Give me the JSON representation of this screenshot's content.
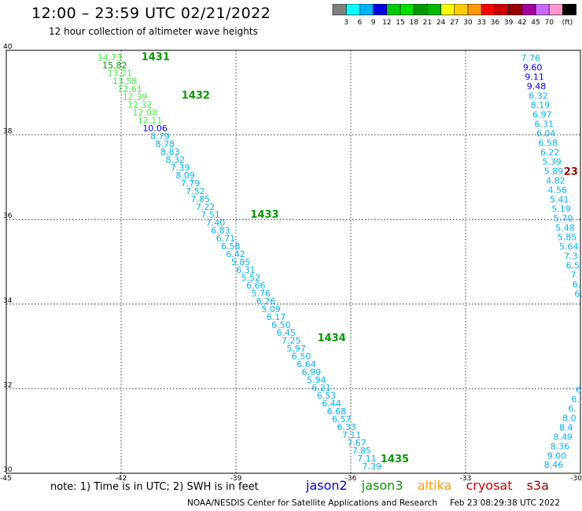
{
  "header": {
    "title": "12:00 – 23:59 UTC 02/21/2022",
    "subtitle": "12 hour collection of altimeter wave heights"
  },
  "colorbar": {
    "colors": [
      "#808080",
      "#00ffff",
      "#00b2ff",
      "#0000e0",
      "#00cd00",
      "#00e000",
      "#009900",
      "#00b800",
      "#ffff00",
      "#ffcc00",
      "#ff9900",
      "#ff0000",
      "#cc0000",
      "#990000",
      "#a000a0",
      "#cc66ff",
      "#ff99cc",
      "#000000"
    ],
    "ticks": [
      "3",
      "6",
      "9",
      "12",
      "15",
      "18",
      "21",
      "24",
      "27",
      "30",
      "33",
      "36",
      "39",
      "42",
      "45",
      "70",
      "(ft)"
    ]
  },
  "footer": {
    "note": "note: 1) Time is in UTC; 2) SWH is in feet",
    "satellites": [
      {
        "name": "jason2",
        "color": "#0000e0"
      },
      {
        "name": "jason3",
        "color": "#009900"
      },
      {
        "name": "altika",
        "color": "#ff9900"
      },
      {
        "name": "cryosat",
        "color": "#cc0000"
      },
      {
        "name": "s3a",
        "color": "#990000"
      }
    ],
    "credit": "NOAA/NESDIS Center for Satellite Applications and Research",
    "generated": "Feb 23 08:29:38 UTC 2022"
  },
  "chart_data": {
    "type": "scatter",
    "title": "",
    "xlim": [
      -45,
      -30
    ],
    "ylim": [
      30,
      40
    ],
    "x_ticks": [
      -45,
      -42,
      -39,
      -36,
      -33,
      -30
    ],
    "y_ticks": [
      30,
      32,
      34,
      36,
      38,
      40
    ],
    "grid": true,
    "track_a": {
      "values": [
        "14.73",
        "15.82",
        "13.21",
        "13.58",
        "12.61",
        "12.39",
        "12.32",
        "12.08",
        "12.11",
        "10.06",
        "8.79",
        "8.78",
        "8.83",
        "8.32",
        "7.39",
        "8.09",
        "7.79",
        "7.52",
        "7.85",
        "7.22",
        "7.51",
        "7.40",
        "6.83",
        "6.71",
        "6.58",
        "6.42",
        "5.85",
        "6.31",
        "5.52",
        "6.66",
        "5.76",
        "6.26",
        "5.09",
        "6.17",
        "6.50",
        "6.45",
        "7.25",
        "5.97",
        "6.50",
        "6.64",
        "6.99",
        "5.94",
        "6.21",
        "6.53",
        "6.44",
        "6.68",
        "6.57",
        "6.33",
        "7.11",
        "7.67",
        "7.85",
        "7.11",
        "7.39"
      ],
      "colors": [
        "#44ee44",
        "#009900",
        "#44ee44",
        "#44ee44",
        "#44ee44",
        "#44ee44",
        "#44ee44",
        "#44ee44",
        "#44ee44",
        "#0000e0",
        "#00b2ff",
        "#00b2ff",
        "#00b2ff",
        "#00b2ff",
        "#00b2ff",
        "#00b2ff",
        "#00b2ff",
        "#00b2ff",
        "#00b2ff",
        "#00b2ff",
        "#00b2ff",
        "#00b2ff",
        "#00b2ff",
        "#00b2ff",
        "#00b2ff",
        "#00b2ff",
        "#00b2ff",
        "#00b2ff",
        "#00b2ff",
        "#00b2ff",
        "#00b2ff",
        "#00b2ff",
        "#00b2ff",
        "#00b2ff",
        "#00b2ff",
        "#00b2ff",
        "#00b2ff",
        "#00b2ff",
        "#00b2ff",
        "#00b2ff",
        "#00b2ff",
        "#00b2ff",
        "#00b2ff",
        "#00b2ff",
        "#00b2ff",
        "#00b2ff",
        "#00b2ff",
        "#00b2ff",
        "#00b2ff",
        "#00b2ff",
        "#00b2ff",
        "#00b2ff",
        "#00b2ff"
      ],
      "lat_start": 39.83,
      "lat_end": 30.17,
      "lon_start": -42.3,
      "lon_end": -35.45,
      "time_labels": [
        {
          "text": "1431",
          "lat": 39.86,
          "lon": -41.1
        },
        {
          "text": "1432",
          "lat": 38.95,
          "lon": -40.05
        },
        {
          "text": "1433",
          "lat": 36.13,
          "lon": -38.25
        },
        {
          "text": "1434",
          "lat": 33.22,
          "lon": -36.5
        },
        {
          "text": "1435",
          "lat": 30.35,
          "lon": -34.85
        }
      ]
    },
    "track_b": {
      "values": [
        "7.76",
        "9.60",
        "9.11",
        "9.48",
        "6.32",
        "8.19",
        "6.97",
        "6.31",
        "6.04",
        "6.58",
        "6.22",
        "5.39",
        "5.89",
        "4.82",
        "4.56",
        "5.41",
        "5.19",
        "5.70",
        "5.48",
        "5.85",
        "5.64",
        "7.3",
        "6.5",
        "7.",
        "6.",
        "6."
      ],
      "colors": [
        "#00b2ff",
        "#0000e0",
        "#0000e0",
        "#0000e0",
        "#00b2ff",
        "#00b2ff",
        "#00b2ff",
        "#00b2ff",
        "#00b2ff",
        "#00b2ff",
        "#00b2ff",
        "#00b2ff",
        "#00b2ff",
        "#00b2ff",
        "#00b2ff",
        "#00b2ff",
        "#00b2ff",
        "#00b2ff",
        "#00b2ff",
        "#00b2ff",
        "#00b2ff",
        "#00b2ff",
        "#00b2ff",
        "#00b2ff",
        "#00b2ff",
        "#00b2ff"
      ],
      "lat_start": 39.82,
      "lat_end": 34.25,
      "lon_start": -31.3,
      "lon_end": -30.05,
      "time_label": {
        "text": "23",
        "lat": 37.15,
        "lon": -30.25,
        "color": "#990000"
      }
    },
    "track_c": {
      "values": [
        "6",
        "6.",
        "6.",
        "8.0",
        "8.4",
        "8.49",
        "8.36",
        "9.00",
        "8.46"
      ],
      "colors": [
        "#00b2ff",
        "#00b2ff",
        "#00b2ff",
        "#00b2ff",
        "#00b2ff",
        "#00b2ff",
        "#00b2ff",
        "#00b2ff",
        "#00b2ff"
      ],
      "lat_start": 31.98,
      "lat_end": 30.2,
      "lon_start": -30.05,
      "lon_end": -30.7
    }
  }
}
